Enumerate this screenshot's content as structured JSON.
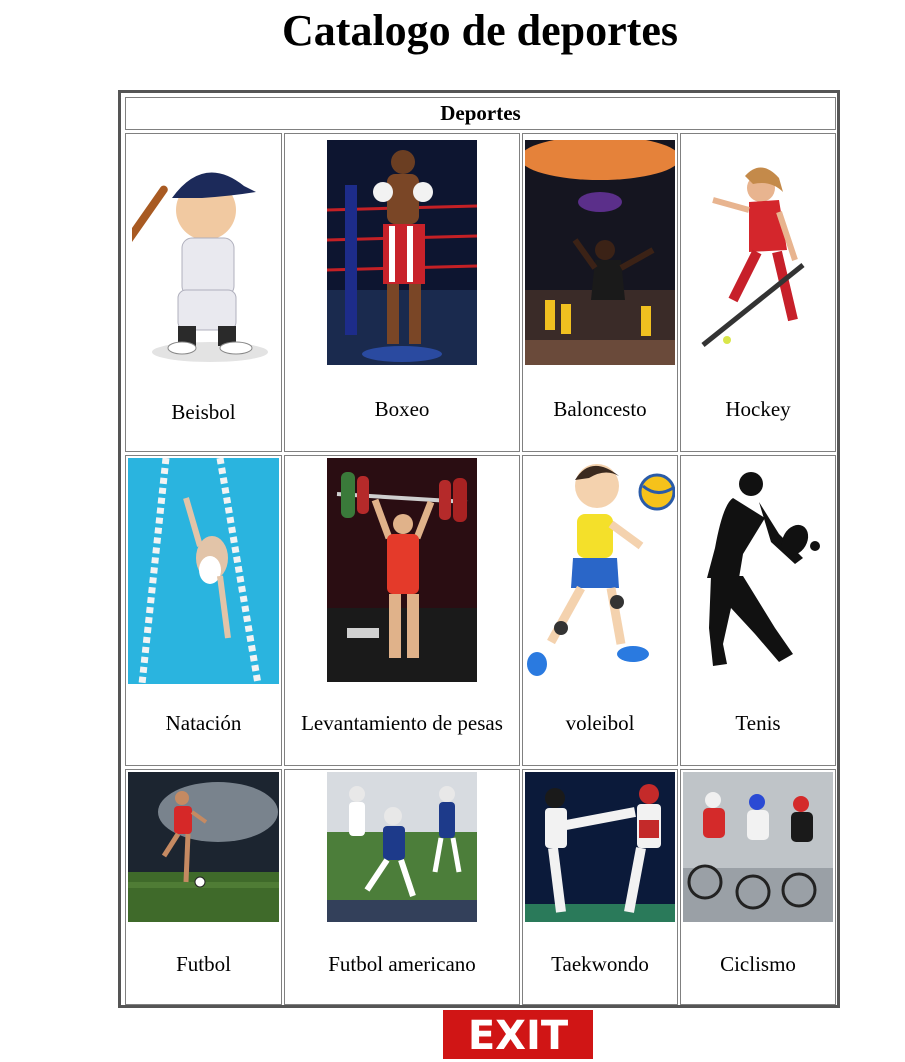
{
  "page": {
    "title": "Catalogo de deportes"
  },
  "table": {
    "header": "Deportes",
    "sports": [
      {
        "label": "Beisbol",
        "image": "baseball-player-illustration"
      },
      {
        "label": "Boxeo",
        "image": "boxer-in-ring-photo"
      },
      {
        "label": "Baloncesto",
        "image": "basketball-dunk-photo"
      },
      {
        "label": "Hockey",
        "image": "field-hockey-player-illustration"
      },
      {
        "label": "Natación",
        "image": "swimmer-in-pool-photo"
      },
      {
        "label": "Levantamiento de pesas",
        "image": "weightlifter-photo"
      },
      {
        "label": "voleibol",
        "image": "volleyball-player-cartoon"
      },
      {
        "label": "Tenis",
        "image": "tennis-player-silhouette"
      },
      {
        "label": "Futbol",
        "image": "soccer-player-stadium-photo"
      },
      {
        "label": "Futbol americano",
        "image": "american-football-game-photo"
      },
      {
        "label": "Taekwondo",
        "image": "taekwondo-kick-photo"
      },
      {
        "label": "Ciclismo",
        "image": "cycling-race-photo"
      }
    ]
  },
  "exit": {
    "label": "EXIT",
    "color": "#d01515"
  }
}
